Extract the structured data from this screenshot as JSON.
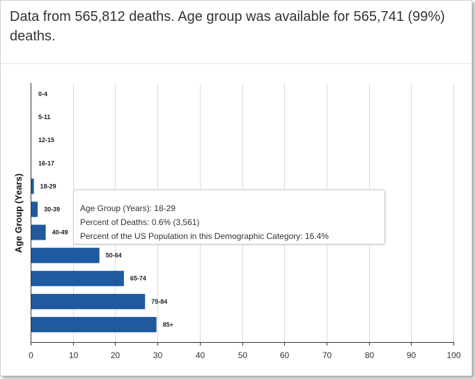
{
  "caption": "Data from 565,812 deaths. Age group was available for 565,741 (99%) deaths.",
  "chart_data": {
    "type": "bar",
    "orientation": "horizontal",
    "ylabel": "Age Group (Years)",
    "xlim": [
      0,
      100
    ],
    "xticks": [
      0,
      10,
      20,
      30,
      40,
      50,
      60,
      70,
      80,
      90,
      100
    ],
    "grid": true,
    "bar_color": "#1f5a9e",
    "categories": [
      "0-4",
      "5-11",
      "12-15",
      "16-17",
      "18-29",
      "30-39",
      "40-49",
      "50-64",
      "65-74",
      "75-84",
      "85+"
    ],
    "values": [
      0,
      0,
      0,
      0,
      0.6,
      1.5,
      3.4,
      16.1,
      21.9,
      26.9,
      29.6
    ]
  },
  "tooltip": {
    "line1": "Age Group (Years): 18-29",
    "line2": "Percent of Deaths: 0.6% (3,561)",
    "line3": "Percent of the US Population in this Demographic Category: 16.4%"
  }
}
